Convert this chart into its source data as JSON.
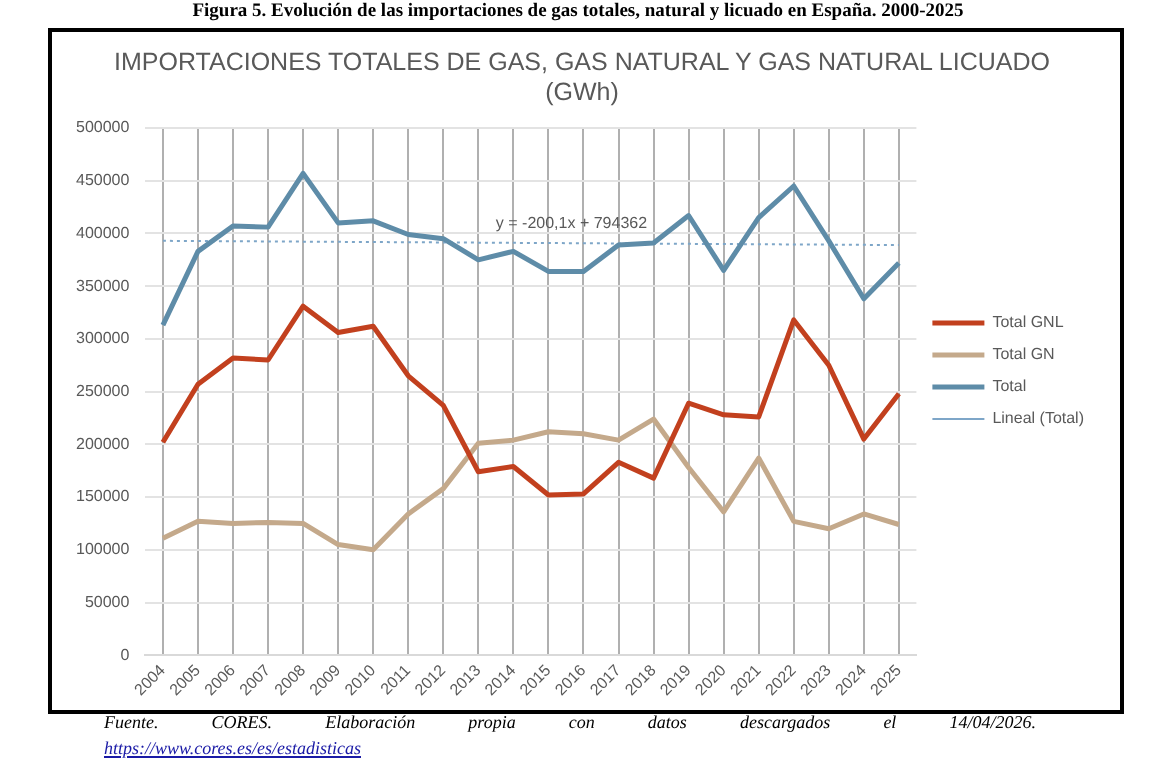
{
  "chart_data": {
    "type": "line",
    "title": "Figura 5. Evolución de las importaciones de gas totales, natural y licuado en España. 2000-2025",
    "subtitle": "IMPORTACIONES TOTALES DE GAS, GAS NATURAL Y GAS NATURAL LICUADO (GWh)",
    "categories": [
      "2004",
      "2005",
      "2006",
      "2007",
      "2008",
      "2009",
      "2010",
      "2011",
      "2012",
      "2013",
      "2014",
      "2015",
      "2016",
      "2017",
      "2018",
      "2019",
      "2020",
      "2021",
      "2022",
      "2023",
      "2024",
      "2025"
    ],
    "series": [
      {
        "name": "Total GNL",
        "color": "#c2401e",
        "values": [
          202000,
          257000,
          282000,
          280000,
          331000,
          306000,
          312000,
          265000,
          237000,
          174000,
          179000,
          152000,
          153000,
          183000,
          168000,
          239000,
          228000,
          226000,
          318000,
          275000,
          205000,
          248000
        ]
      },
      {
        "name": "Total GN",
        "color": "#c4a98b",
        "values": [
          111000,
          127000,
          125000,
          126000,
          125000,
          105000,
          100000,
          134000,
          158000,
          201000,
          204000,
          212000,
          210000,
          204000,
          224000,
          178000,
          136000,
          187000,
          127000,
          120000,
          134000,
          124000
        ]
      },
      {
        "name": "Total",
        "color": "#5e8ca8",
        "values": [
          313000,
          383000,
          407000,
          406000,
          457000,
          410000,
          412000,
          399000,
          395000,
          375000,
          383000,
          364000,
          364000,
          389000,
          391000,
          417000,
          365000,
          415000,
          445000,
          393000,
          338000,
          372000
        ]
      },
      {
        "name": "Lineal (Total)",
        "color": "#7ea6c8",
        "line_style": "dotted",
        "values": [
          393000,
          null,
          null,
          null,
          null,
          null,
          null,
          null,
          null,
          null,
          null,
          null,
          null,
          null,
          null,
          null,
          null,
          null,
          null,
          null,
          null,
          389000
        ]
      }
    ],
    "ylim": [
      0,
      500000
    ],
    "yticks": [
      0,
      50000,
      100000,
      150000,
      200000,
      250000,
      300000,
      350000,
      400000,
      450000,
      500000
    ],
    "grid": true,
    "legend": "right",
    "marker": "none",
    "annotations": [
      "y = -200,1x + 794362",
      "Fuente. CORES. Elaboración propia con datos descargados el 14/04/2026.",
      "https://www.cores.es/es/estadisticas"
    ]
  }
}
